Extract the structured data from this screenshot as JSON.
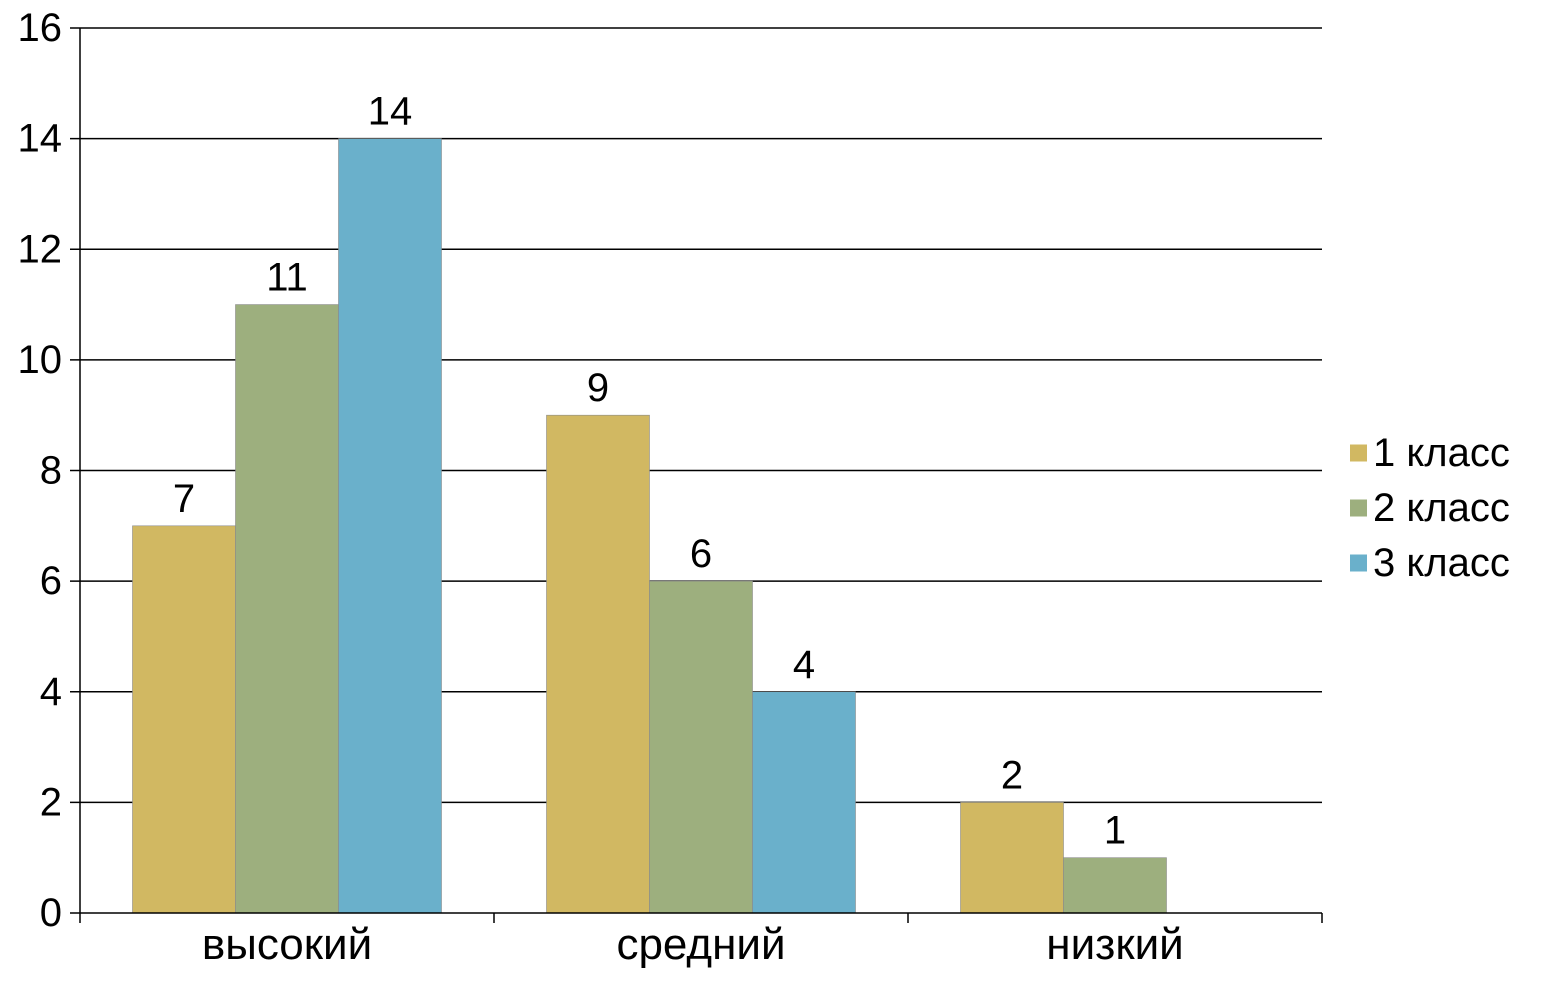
{
  "chart_data": {
    "type": "bar",
    "title": "",
    "xlabel": "",
    "ylabel": "",
    "categories": [
      "высокий",
      "средний",
      "низкий"
    ],
    "series": [
      {
        "name": "1 класс",
        "values": [
          7,
          9,
          2
        ],
        "color": "#D1B862"
      },
      {
        "name": "2 класс",
        "values": [
          11,
          6,
          1
        ],
        "color": "#9DAF7E"
      },
      {
        "name": "3 класс",
        "values": [
          14,
          4,
          null
        ],
        "color": "#6AB0CB"
      }
    ],
    "ylim": [
      0,
      16
    ],
    "yticks": [
      "0",
      "2",
      "4",
      "6",
      "8",
      "10",
      "12",
      "14",
      "16"
    ],
    "grid": true,
    "legend_position": "right",
    "data_labels": true,
    "gridline_color": "#000000"
  }
}
